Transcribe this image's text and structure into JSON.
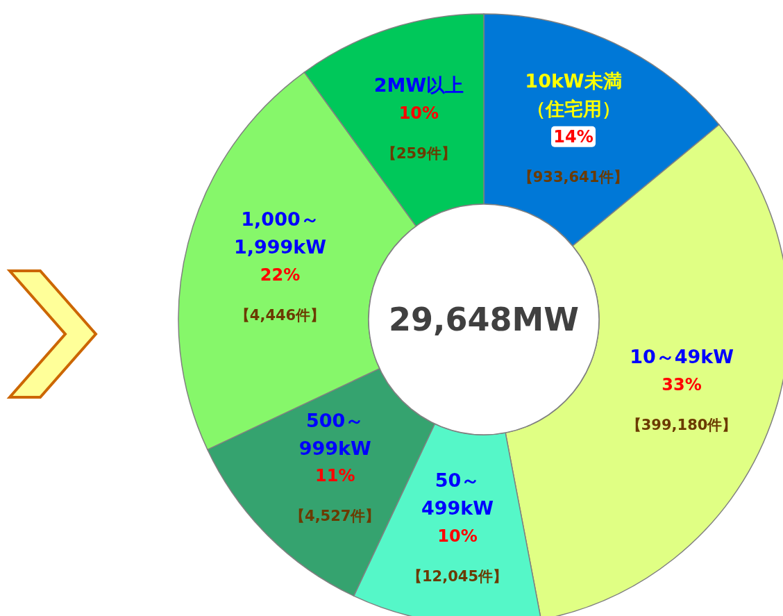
{
  "chart_data": {
    "type": "donut",
    "categories": [
      "10kW未満（住宅用）",
      "10～49kW",
      "50～\n499kW",
      "500～\n999kW",
      "1,000～\n1,999kW",
      "2MW以上"
    ],
    "values": [
      14,
      33,
      10,
      11,
      22,
      10
    ],
    "value_labels": [
      "14%",
      "33%",
      "10%",
      "11%",
      "22%",
      "10%"
    ],
    "colors": [
      "#0078d7",
      "#e0ff84",
      "#55f7c8",
      "#35a36f",
      "#86f76a",
      "#00c85a"
    ],
    "annotations": [
      "【933,641件】",
      "【399,180件】",
      "【12,045件】",
      "【4,527件】",
      "【4,446件】",
      "【259件】",
      "29,648MW"
    ]
  }
}
